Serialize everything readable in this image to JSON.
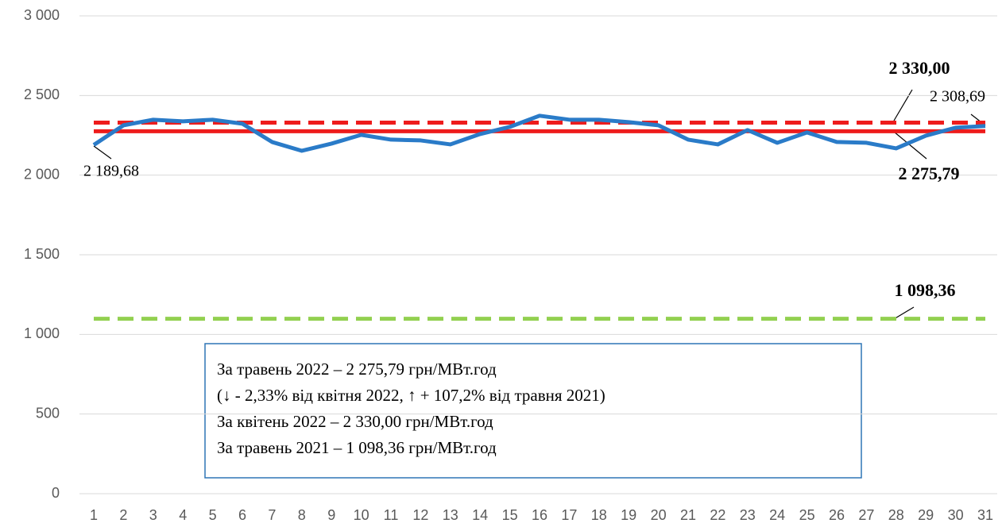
{
  "chart_data": {
    "type": "line",
    "categories": [
      "1",
      "2",
      "3",
      "4",
      "5",
      "6",
      "7",
      "8",
      "9",
      "10",
      "11",
      "12",
      "13",
      "14",
      "15",
      "16",
      "17",
      "18",
      "19",
      "20",
      "21",
      "22",
      "23",
      "24",
      "25",
      "26",
      "27",
      "28",
      "29",
      "30",
      "31"
    ],
    "series": [
      {
        "color": "#2a7bc8",
        "values": [
          2189.68,
          2313,
          2348,
          2338,
          2348,
          2323,
          2208,
          2153,
          2198,
          2253,
          2223,
          2218,
          2193,
          2258,
          2303,
          2373,
          2348,
          2348,
          2333,
          2313,
          2223,
          2193,
          2283,
          2203,
          2268,
          2208,
          2203,
          2168,
          2248,
          2298,
          2308.69
        ],
        "value_labels": [
          "2 189,68",
          null,
          null,
          null,
          null,
          null,
          null,
          null,
          null,
          null,
          null,
          null,
          null,
          null,
          null,
          null,
          null,
          null,
          null,
          null,
          null,
          null,
          null,
          null,
          null,
          null,
          null,
          null,
          null,
          null,
          "2 308,69"
        ]
      }
    ],
    "reference_lines": [
      {
        "value": 2330.0,
        "label": "2 330,00",
        "color": "#ee1c1c",
        "dashed": true
      },
      {
        "value": 2275.79,
        "label": "2 275,79",
        "color": "#ee1c1c",
        "dashed": false
      },
      {
        "value": 1098.36,
        "label": "1 098,36",
        "color": "#92d050",
        "dashed": true
      }
    ],
    "ylim": [
      0,
      3000
    ],
    "yticks": [
      0,
      500,
      {
        "value": 1000,
        "label": "1 000"
      },
      {
        "value": 1500,
        "label": "1 500"
      },
      {
        "value": 2000,
        "label": "2 000"
      },
      {
        "value": 2500,
        "label": "2 500"
      },
      {
        "value": 3000,
        "label": "3 000"
      }
    ],
    "grid": true,
    "annotation": [
      "За травень 2022 – 2 275,79 грн/МВт.год",
      "(↓ - 2,33% від квітня 2022, ↑ + 107,2% від травня 2021)",
      "За квітень 2022 – 2 330,00 грн/МВт.год",
      "За травень 2021 – 1 098,36 грн/МВт.год"
    ]
  }
}
